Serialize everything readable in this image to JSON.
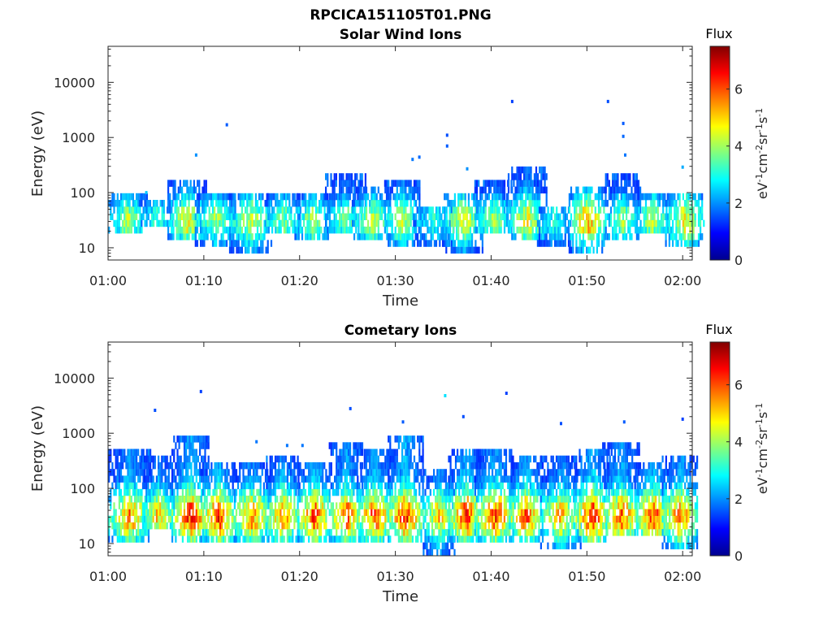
{
  "figure": {
    "title": "RPCICA151105T01.PNG"
  },
  "colors": {
    "axis": "#262626",
    "background": "#ffffff",
    "colormap": [
      "#00008f",
      "#0000ff",
      "#0080ff",
      "#00ffff",
      "#80ff80",
      "#ffff00",
      "#ff8000",
      "#ff0000",
      "#800000"
    ]
  },
  "chart_data": [
    {
      "type": "heatmap",
      "title": "Solar Wind Ions",
      "xlabel": "Time",
      "ylabel": "Energy (eV)",
      "y_scale": "log",
      "ylim": [
        6,
        45000
      ],
      "xlim": [
        "01:00",
        "02:01"
      ],
      "x_ticks": [
        "01:00",
        "01:10",
        "01:20",
        "01:30",
        "01:40",
        "01:50",
        "02:00"
      ],
      "y_ticks": [
        10,
        100,
        1000,
        10000
      ],
      "y_tick_labels": [
        "10",
        "100",
        "1000",
        "10000"
      ],
      "colorbar": {
        "label": "Flux",
        "units": "eV<sup>-1</sup>cm<sup>-2</sup>sr<sup>-1</sup>s<sup>-1</sup>",
        "range": [
          0,
          7.5
        ],
        "ticks": [
          0,
          2,
          4,
          6
        ],
        "tick_labels": [
          "0",
          "2",
          "4",
          "6"
        ]
      },
      "bursts": [
        {
          "t": 2.0,
          "lo": 18,
          "hi": 85,
          "peak": 4.4
        },
        {
          "t": 5.0,
          "lo": 22,
          "hi": 70,
          "peak": 3.6
        },
        {
          "t": 8.2,
          "lo": 14,
          "hi": 170,
          "peak": 5.0
        },
        {
          "t": 11.2,
          "lo": 12,
          "hi": 110,
          "peak": 4.3
        },
        {
          "t": 14.8,
          "lo": 8,
          "hi": 90,
          "peak": 4.8
        },
        {
          "t": 18.2,
          "lo": 16,
          "hi": 100,
          "peak": 4.1
        },
        {
          "t": 21.3,
          "lo": 14,
          "hi": 95,
          "peak": 4.4
        },
        {
          "t": 24.8,
          "lo": 16,
          "hi": 240,
          "peak": 4.0
        },
        {
          "t": 27.6,
          "lo": 14,
          "hi": 140,
          "peak": 4.4
        },
        {
          "t": 30.7,
          "lo": 12,
          "hi": 170,
          "peak": 4.6
        },
        {
          "t": 34.0,
          "lo": 12,
          "hi": 60,
          "peak": 3.4
        },
        {
          "t": 37.0,
          "lo": 9,
          "hi": 110,
          "peak": 4.8
        },
        {
          "t": 40.2,
          "lo": 16,
          "hi": 150,
          "peak": 4.3
        },
        {
          "t": 43.7,
          "lo": 14,
          "hi": 320,
          "peak": 5.0
        },
        {
          "t": 46.5,
          "lo": 12,
          "hi": 60,
          "peak": 3.4
        },
        {
          "t": 50.0,
          "lo": 8,
          "hi": 120,
          "peak": 5.8
        },
        {
          "t": 53.7,
          "lo": 14,
          "hi": 200,
          "peak": 4.3
        },
        {
          "t": 56.8,
          "lo": 16,
          "hi": 110,
          "peak": 4.5
        },
        {
          "t": 60.2,
          "lo": 12,
          "hi": 110,
          "peak": 5.1
        }
      ],
      "sparse_points": [
        {
          "t": 12.4,
          "e": 1700,
          "v": 1.6
        },
        {
          "t": 9.2,
          "e": 480,
          "v": 2.0
        },
        {
          "t": 35.4,
          "e": 1100,
          "v": 1.5
        },
        {
          "t": 35.4,
          "e": 700,
          "v": 1.6
        },
        {
          "t": 31.8,
          "e": 400,
          "v": 1.8
        },
        {
          "t": 32.5,
          "e": 440,
          "v": 1.7
        },
        {
          "t": 42.2,
          "e": 4500,
          "v": 1.4
        },
        {
          "t": 52.2,
          "e": 4500,
          "v": 1.5
        },
        {
          "t": 53.8,
          "e": 1800,
          "v": 1.6
        },
        {
          "t": 53.8,
          "e": 1050,
          "v": 1.7
        },
        {
          "t": 54.0,
          "e": 480,
          "v": 1.8
        },
        {
          "t": 37.5,
          "e": 270,
          "v": 2.0
        },
        {
          "t": 60.0,
          "e": 290,
          "v": 2.2
        },
        {
          "t": 4.0,
          "e": 100,
          "v": 2.4
        }
      ]
    },
    {
      "type": "heatmap",
      "title": "Cometary Ions",
      "xlabel": "Time",
      "ylabel": "Energy (eV)",
      "y_scale": "log",
      "ylim": [
        6,
        45000
      ],
      "xlim": [
        "01:00",
        "02:01"
      ],
      "x_ticks": [
        "01:00",
        "01:10",
        "01:20",
        "01:30",
        "01:40",
        "01:50",
        "02:00"
      ],
      "y_ticks": [
        10,
        100,
        1000,
        10000
      ],
      "y_tick_labels": [
        "10",
        "100",
        "1000",
        "10000"
      ],
      "colorbar": {
        "label": "Flux",
        "units": "eV<sup>-1</sup>cm<sup>-2</sup>sr<sup>-1</sup>s<sup>-1</sup>",
        "range": [
          0,
          7.5
        ],
        "ticks": [
          0,
          2,
          4,
          6
        ],
        "tick_labels": [
          "0",
          "2",
          "4",
          "6"
        ]
      },
      "bursts": [
        {
          "t": 2.2,
          "lo": 12,
          "hi": 550,
          "peak": 6.0
        },
        {
          "t": 5.2,
          "lo": 16,
          "hi": 450,
          "peak": 5.6
        },
        {
          "t": 8.6,
          "lo": 10,
          "hi": 800,
          "peak": 6.9
        },
        {
          "t": 11.5,
          "lo": 10,
          "hi": 280,
          "peak": 6.6
        },
        {
          "t": 15.0,
          "lo": 12,
          "hi": 300,
          "peak": 6.0
        },
        {
          "t": 18.2,
          "lo": 12,
          "hi": 420,
          "peak": 6.2
        },
        {
          "t": 21.5,
          "lo": 10,
          "hi": 320,
          "peak": 6.7
        },
        {
          "t": 24.8,
          "lo": 12,
          "hi": 600,
          "peak": 6.4
        },
        {
          "t": 27.8,
          "lo": 12,
          "hi": 550,
          "peak": 6.6
        },
        {
          "t": 31.0,
          "lo": 10,
          "hi": 900,
          "peak": 6.9
        },
        {
          "t": 34.5,
          "lo": 6,
          "hi": 200,
          "peak": 5.5
        },
        {
          "t": 37.3,
          "lo": 10,
          "hi": 550,
          "peak": 6.8
        },
        {
          "t": 40.4,
          "lo": 12,
          "hi": 520,
          "peak": 6.6
        },
        {
          "t": 43.6,
          "lo": 12,
          "hi": 450,
          "peak": 6.4
        },
        {
          "t": 47.2,
          "lo": 8,
          "hi": 420,
          "peak": 5.6
        },
        {
          "t": 50.5,
          "lo": 12,
          "hi": 550,
          "peak": 7.0
        },
        {
          "t": 53.5,
          "lo": 14,
          "hi": 600,
          "peak": 6.4
        },
        {
          "t": 56.8,
          "lo": 14,
          "hi": 300,
          "peak": 6.7
        },
        {
          "t": 59.7,
          "lo": 8,
          "hi": 350,
          "peak": 6.3
        }
      ],
      "sparse_points": [
        {
          "t": 9.7,
          "e": 5700,
          "v": 1.4
        },
        {
          "t": 4.9,
          "e": 2600,
          "v": 1.5
        },
        {
          "t": 25.3,
          "e": 2800,
          "v": 1.5
        },
        {
          "t": 30.8,
          "e": 1600,
          "v": 1.6
        },
        {
          "t": 35.2,
          "e": 4800,
          "v": 2.6
        },
        {
          "t": 37.1,
          "e": 2000,
          "v": 1.5
        },
        {
          "t": 41.6,
          "e": 5300,
          "v": 1.4
        },
        {
          "t": 47.3,
          "e": 1500,
          "v": 1.5
        },
        {
          "t": 53.9,
          "e": 1600,
          "v": 1.6
        },
        {
          "t": 60.0,
          "e": 1800,
          "v": 1.4
        },
        {
          "t": 15.5,
          "e": 700,
          "v": 1.8
        },
        {
          "t": 18.7,
          "e": 600,
          "v": 1.8
        },
        {
          "t": 20.3,
          "e": 600,
          "v": 1.8
        }
      ]
    }
  ]
}
